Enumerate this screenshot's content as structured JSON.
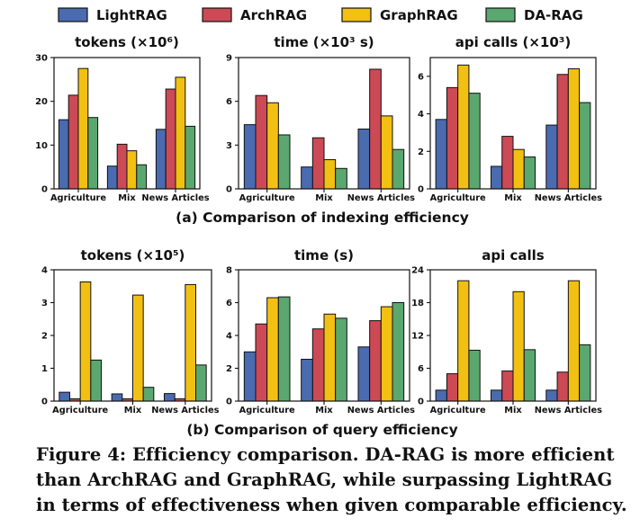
{
  "legend": [
    {
      "name": "LightRAG",
      "color": "#4a6bb0"
    },
    {
      "name": "ArchRAG",
      "color": "#cc4a55"
    },
    {
      "name": "GraphRAG",
      "color": "#f2c012"
    },
    {
      "name": "DA-RAG",
      "color": "#5aa870"
    }
  ],
  "sections": [
    {
      "label": "(a) Comparison of indexing efficiency"
    },
    {
      "label": "(b) Comparison of query efficiency"
    }
  ],
  "caption_lines": [
    "Figure 4: Efficiency comparison. DA-RAG is more efficient",
    "than ArchRAG and GraphRAG, while surpassing LightRAG",
    "in terms of effectiveness when given comparable efficiency."
  ],
  "chart_data": [
    {
      "type": "bar",
      "title": "tokens (×10⁶)",
      "categories": [
        "Agriculture",
        "Mix",
        "News Articles"
      ],
      "ylim": [
        0,
        30
      ],
      "yticks": [
        0,
        10,
        20,
        30
      ],
      "series": [
        {
          "name": "LightRAG",
          "values": [
            15.8,
            5.2,
            13.6
          ]
        },
        {
          "name": "ArchRAG",
          "values": [
            21.4,
            10.2,
            22.8
          ]
        },
        {
          "name": "GraphRAG",
          "values": [
            27.5,
            8.7,
            25.5
          ]
        },
        {
          "name": "DA-RAG",
          "values": [
            16.3,
            5.5,
            14.3
          ]
        }
      ]
    },
    {
      "type": "bar",
      "title": "time (×10³ s)",
      "categories": [
        "Agriculture",
        "Mix",
        "News Articles"
      ],
      "ylim": [
        0,
        9
      ],
      "yticks": [
        0,
        3,
        6,
        9
      ],
      "series": [
        {
          "name": "LightRAG",
          "values": [
            4.4,
            1.5,
            4.1
          ]
        },
        {
          "name": "ArchRAG",
          "values": [
            6.4,
            3.5,
            8.2
          ]
        },
        {
          "name": "GraphRAG",
          "values": [
            5.9,
            2.0,
            5.0
          ]
        },
        {
          "name": "DA-RAG",
          "values": [
            3.7,
            1.4,
            2.7
          ]
        }
      ]
    },
    {
      "type": "bar",
      "title": "api calls (×10³)",
      "categories": [
        "Agriculture",
        "Mix",
        "News Articles"
      ],
      "ylim": [
        0,
        7
      ],
      "yticks": [
        0,
        2,
        4,
        6
      ],
      "series": [
        {
          "name": "LightRAG",
          "values": [
            3.7,
            1.2,
            3.4
          ]
        },
        {
          "name": "ArchRAG",
          "values": [
            5.4,
            2.8,
            6.1
          ]
        },
        {
          "name": "GraphRAG",
          "values": [
            6.6,
            2.1,
            6.4
          ]
        },
        {
          "name": "DA-RAG",
          "values": [
            5.1,
            1.7,
            4.6
          ]
        }
      ]
    },
    {
      "type": "bar",
      "title": "tokens (×10⁵)",
      "categories": [
        "Agriculture",
        "Mix",
        "News Articles"
      ],
      "ylim": [
        0,
        4
      ],
      "yticks": [
        0,
        1,
        2,
        3,
        4
      ],
      "series": [
        {
          "name": "LightRAG",
          "values": [
            0.27,
            0.22,
            0.23
          ]
        },
        {
          "name": "ArchRAG",
          "values": [
            0.07,
            0.07,
            0.07
          ]
        },
        {
          "name": "GraphRAG",
          "values": [
            3.63,
            3.23,
            3.55
          ]
        },
        {
          "name": "DA-RAG",
          "values": [
            1.25,
            0.42,
            1.1
          ]
        }
      ]
    },
    {
      "type": "bar",
      "title": "time (s)",
      "categories": [
        "Agriculture",
        "Mix",
        "News Articles"
      ],
      "ylim": [
        0,
        8
      ],
      "yticks": [
        0,
        2,
        4,
        6,
        8
      ],
      "series": [
        {
          "name": "LightRAG",
          "values": [
            3.0,
            2.55,
            3.3
          ]
        },
        {
          "name": "ArchRAG",
          "values": [
            4.7,
            4.4,
            4.9
          ]
        },
        {
          "name": "GraphRAG",
          "values": [
            6.3,
            5.3,
            5.75
          ]
        },
        {
          "name": "DA-RAG",
          "values": [
            6.35,
            5.05,
            6.0
          ]
        }
      ]
    },
    {
      "type": "bar",
      "title": "api calls",
      "categories": [
        "Agriculture",
        "Mix",
        "News Articles"
      ],
      "ylim": [
        0,
        24
      ],
      "yticks": [
        0,
        6,
        12,
        18,
        24
      ],
      "series": [
        {
          "name": "LightRAG",
          "values": [
            2.0,
            2.0,
            2.0
          ]
        },
        {
          "name": "ArchRAG",
          "values": [
            5.0,
            5.5,
            5.3
          ]
        },
        {
          "name": "GraphRAG",
          "values": [
            22.0,
            20.0,
            22.0
          ]
        },
        {
          "name": "DA-RAG",
          "values": [
            9.3,
            9.4,
            10.3
          ]
        }
      ]
    }
  ]
}
